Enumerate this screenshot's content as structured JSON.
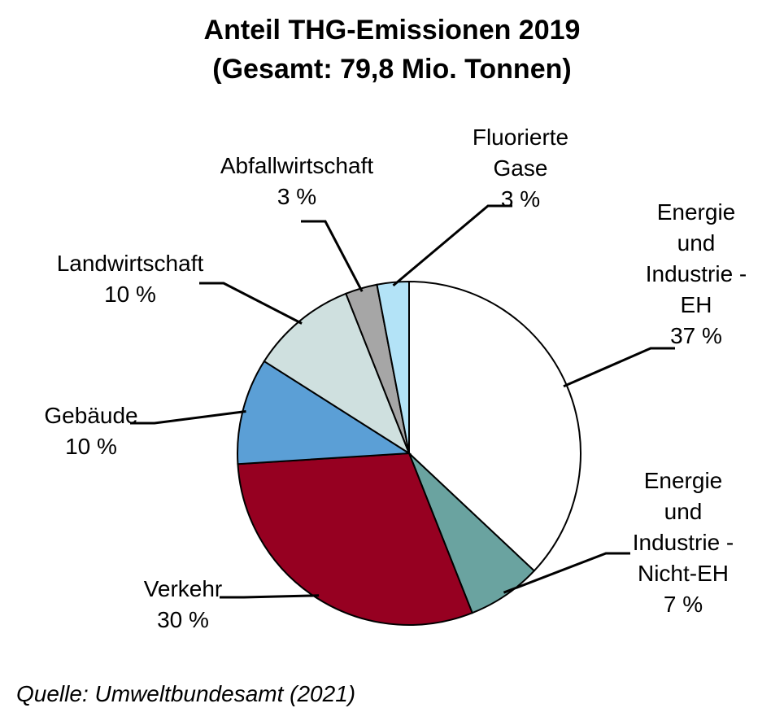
{
  "chart_data": {
    "type": "pie",
    "title": [
      "Anteil THG-Emissionen 2019",
      "(Gesamt: 79,8 Mio. Tonnen)"
    ],
    "source": "Quelle: Umweltbundesamt (2021)",
    "unit": "%",
    "slices": [
      {
        "lines": [
          "Energie",
          "und",
          "Industrie -",
          "EH"
        ],
        "value_label": "37 %",
        "value": 37,
        "color": "#ffffff"
      },
      {
        "lines": [
          "Energie",
          "und",
          "Industrie -",
          "Nicht-EH"
        ],
        "value_label": "7 %",
        "value": 7,
        "color": "#6aa3a0"
      },
      {
        "lines": [
          "Verkehr"
        ],
        "value_label": "30 %",
        "value": 30,
        "color": "#960021"
      },
      {
        "lines": [
          "Gebäude"
        ],
        "value_label": "10 %",
        "value": 10,
        "color": "#5b9fd6"
      },
      {
        "lines": [
          "Landwirtschaft"
        ],
        "value_label": "10 %",
        "value": 10,
        "color": "#cfe0df"
      },
      {
        "lines": [
          "Abfallwirtschaft"
        ],
        "value_label": "3 %",
        "value": 3,
        "color": "#a6a6a6"
      },
      {
        "lines": [
          "Fluorierte",
          "Gase"
        ],
        "value_label": "3 %",
        "value": 3,
        "color": "#b3e3f7"
      }
    ]
  }
}
